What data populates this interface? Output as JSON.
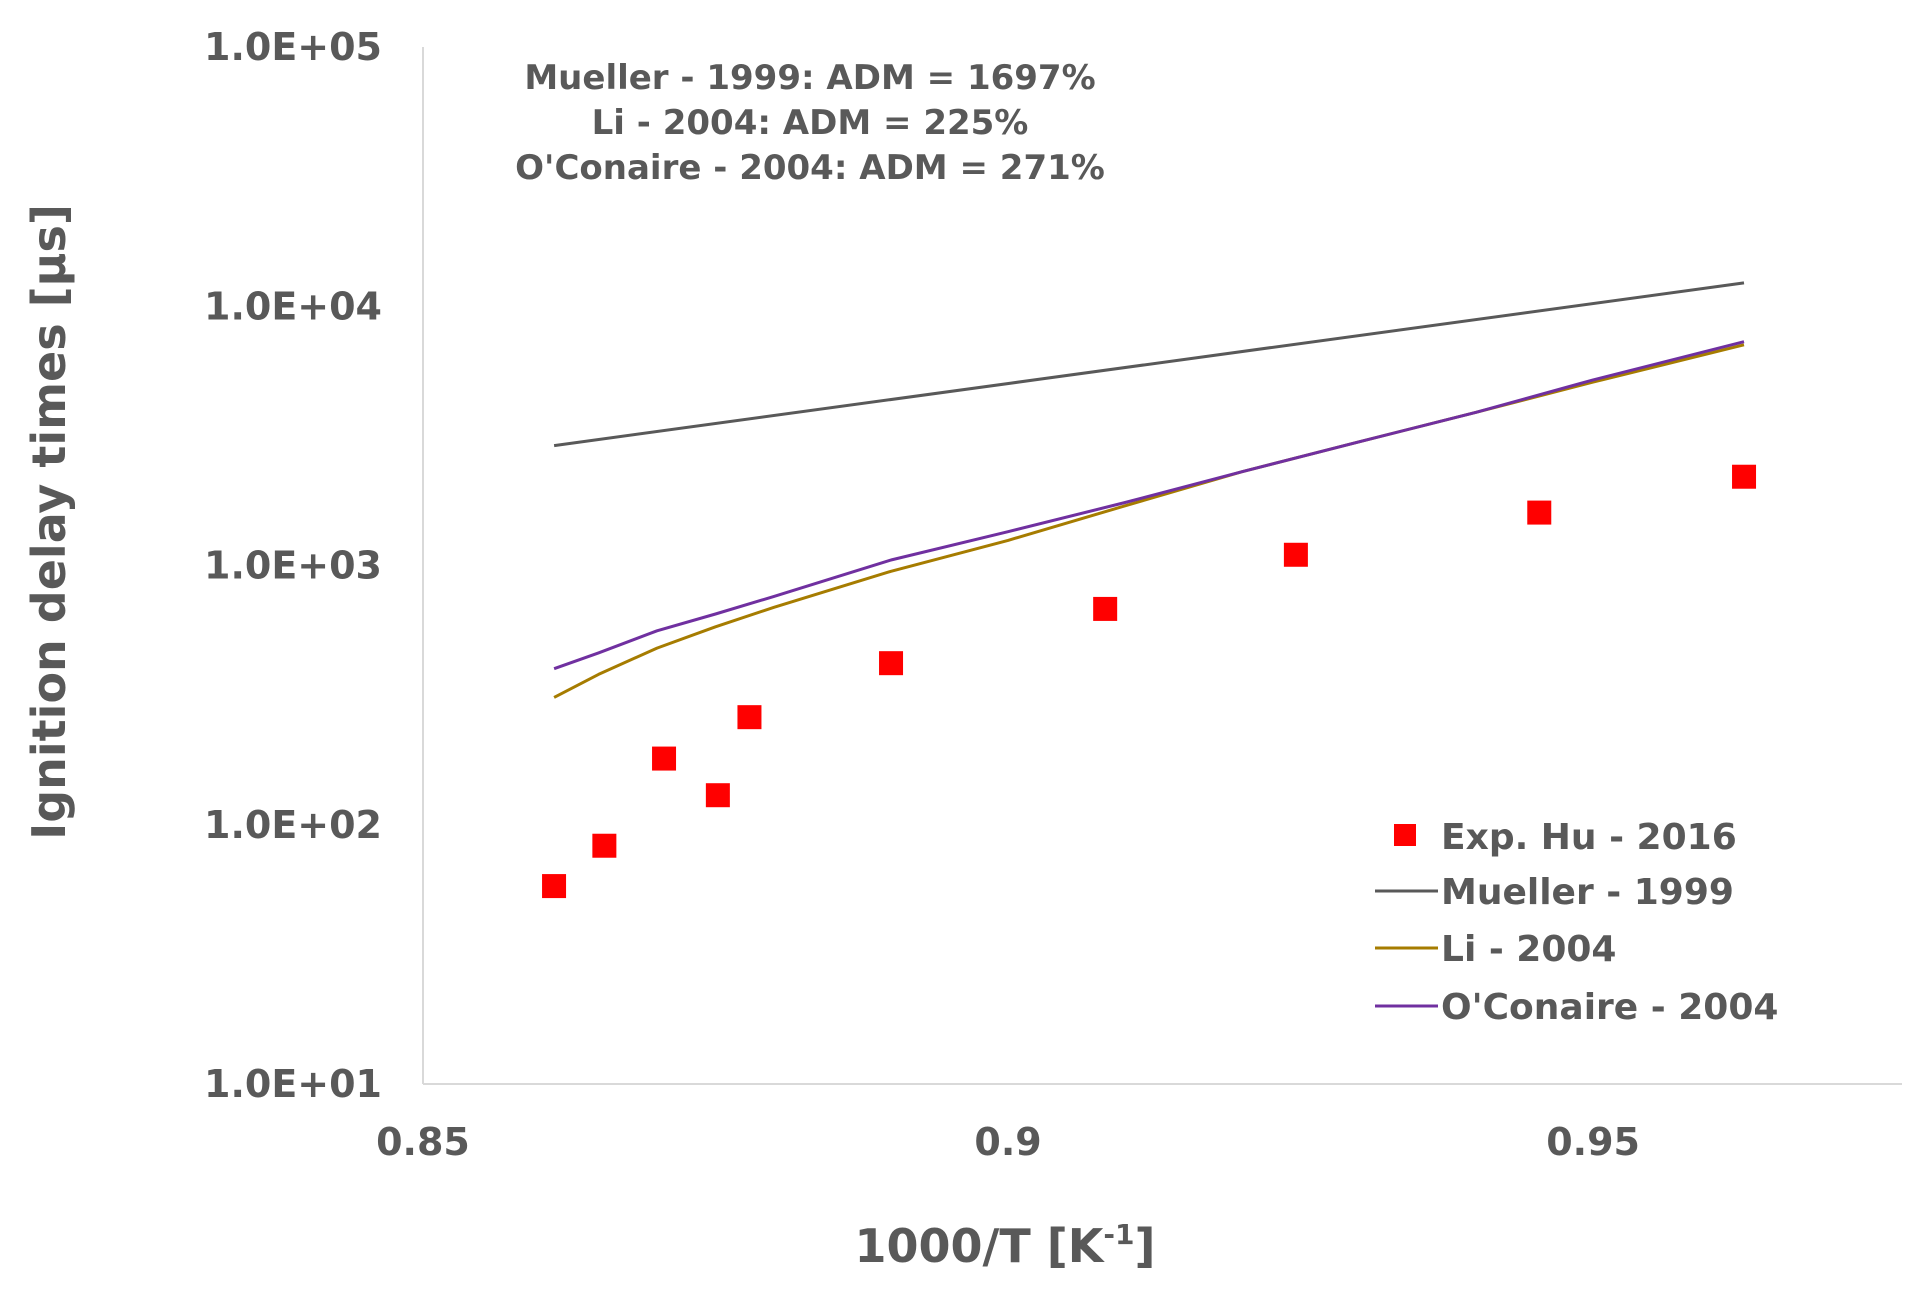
{
  "chart_data": {
    "type": "scatter",
    "title": "",
    "xlabel": "1000/T [K",
    "xlabel_sup": "-1",
    "xlabel_suffix": "]",
    "ylabel": "Ignition delay times [µs]",
    "xlim": [
      0.85,
      0.9764
    ],
    "ylim": [
      10,
      100000
    ],
    "yscale": "log",
    "x_ticks": [
      0.85,
      0.9,
      0.95
    ],
    "x_tick_labels": [
      "0.85",
      "0.9",
      "0.95"
    ],
    "y_ticks": [
      10,
      100,
      1000,
      10000,
      100000
    ],
    "y_tick_labels": [
      "1.0E+01",
      "1.0E+02",
      "1.0E+03",
      "1.0E+04",
      "1.0E+05"
    ],
    "grid": false,
    "legend_position": "bottom-right",
    "annotations": [
      "Mueller - 1999: ADM = 1697%",
      "Li - 2004: ADM = 225%",
      "O'Conaire - 2004: ADM = 271%"
    ],
    "series": [
      {
        "name": "Exp. Hu - 2016",
        "kind": "scatter",
        "marker": "square",
        "color": "#ff0000",
        "x": [
          0.8612,
          0.8655,
          0.8706,
          0.8752,
          0.8779,
          0.89,
          0.9083,
          0.9246,
          0.9454,
          0.9629
        ],
        "y": [
          58,
          83,
          180,
          130,
          260,
          420,
          680,
          1100,
          1600,
          2200
        ]
      },
      {
        "name": "Mueller - 1999",
        "kind": "line",
        "color": "#595959",
        "x": [
          0.8612,
          0.9629
        ],
        "y": [
          2900,
          12300
        ]
      },
      {
        "name": "Li - 2004",
        "kind": "line",
        "color": "#a67c00",
        "x": [
          0.8612,
          0.865,
          0.87,
          0.875,
          0.88,
          0.89,
          0.9,
          0.91,
          0.92,
          0.93,
          0.94,
          0.95,
          0.9629
        ],
        "y": [
          310,
          380,
          480,
          580,
          690,
          950,
          1250,
          1700,
          2300,
          3000,
          3900,
          5100,
          7100
        ]
      },
      {
        "name": "O'Conaire - 2004",
        "kind": "line",
        "color": "#7030a0",
        "x": [
          0.8612,
          0.865,
          0.87,
          0.875,
          0.88,
          0.89,
          0.9,
          0.91,
          0.92,
          0.93,
          0.94,
          0.95,
          0.9629
        ],
        "y": [
          400,
          460,
          560,
          650,
          760,
          1050,
          1350,
          1750,
          2300,
          3000,
          3900,
          5200,
          7300
        ]
      }
    ]
  }
}
